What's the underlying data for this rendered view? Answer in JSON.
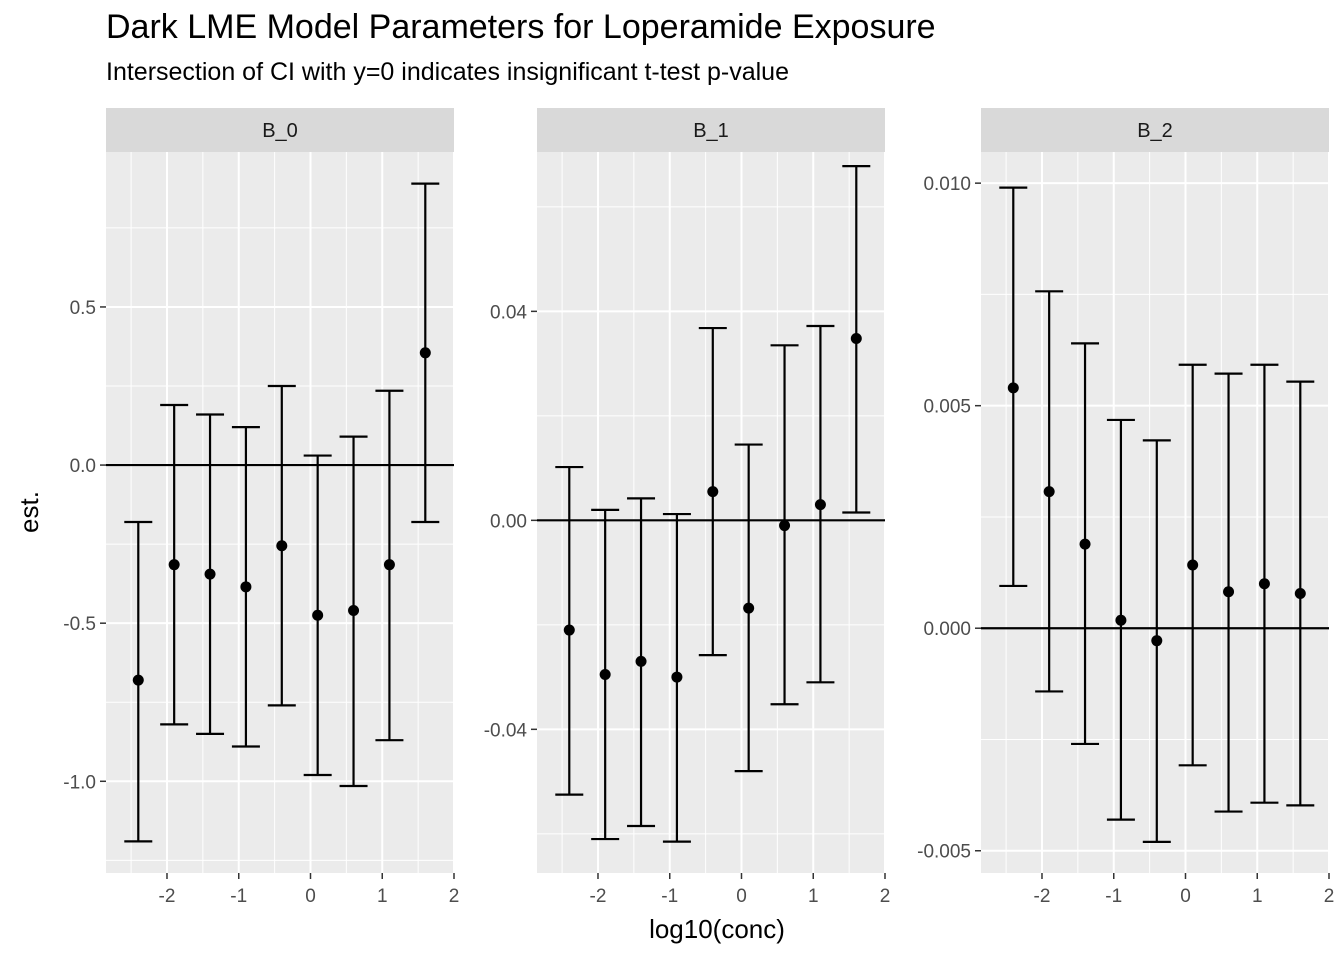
{
  "title": "Dark LME Model Parameters for Loperamide Exposure",
  "subtitle": "Intersection of CI with y=0 indicates insignificant t-test p-value",
  "chart_data": {
    "type": "errorbar",
    "xlabel": "log10(conc)",
    "ylabel": "est.",
    "hline": 0,
    "grid": true,
    "x_ticks": [
      -2,
      -1,
      0,
      1,
      2
    ],
    "x_tick_labels": [
      "-2",
      "-1",
      "0",
      "1",
      "2"
    ],
    "xlim": [
      -2.85,
      2.0
    ],
    "panels": [
      {
        "strip": "B_0",
        "ylim": [
          -1.29,
          0.99
        ],
        "y_ticks": [
          -1.0,
          -0.5,
          0.0,
          0.5
        ],
        "y_tick_labels": [
          "-1.0",
          "-0.5",
          "0.0",
          "0.5"
        ],
        "points": [
          {
            "x": -2.4,
            "est": -0.68,
            "lo": -1.19,
            "hi": -0.18
          },
          {
            "x": -1.9,
            "est": -0.315,
            "lo": -0.82,
            "hi": 0.19
          },
          {
            "x": -1.4,
            "est": -0.345,
            "lo": -0.85,
            "hi": 0.16
          },
          {
            "x": -0.9,
            "est": -0.385,
            "lo": -0.89,
            "hi": 0.12
          },
          {
            "x": -0.4,
            "est": -0.255,
            "lo": -0.76,
            "hi": 0.25
          },
          {
            "x": 0.1,
            "est": -0.475,
            "lo": -0.98,
            "hi": 0.03
          },
          {
            "x": 0.6,
            "est": -0.46,
            "lo": -1.015,
            "hi": 0.09
          },
          {
            "x": 1.1,
            "est": -0.315,
            "lo": -0.87,
            "hi": 0.235
          },
          {
            "x": 1.6,
            "est": 0.355,
            "lo": -0.18,
            "hi": 0.89
          }
        ]
      },
      {
        "strip": "B_1",
        "ylim": [
          -0.0675,
          0.0705
        ],
        "y_ticks": [
          -0.04,
          0.0,
          0.04
        ],
        "y_tick_labels": [
          "-0.04",
          "0.00",
          "0.04"
        ],
        "points": [
          {
            "x": -2.4,
            "est": -0.021,
            "lo": -0.0525,
            "hi": 0.0102
          },
          {
            "x": -1.9,
            "est": -0.0295,
            "lo": -0.061,
            "hi": 0.002
          },
          {
            "x": -1.4,
            "est": -0.027,
            "lo": -0.0585,
            "hi": 0.0042
          },
          {
            "x": -0.9,
            "est": -0.03,
            "lo": -0.0615,
            "hi": 0.0012
          },
          {
            "x": -0.4,
            "est": 0.0055,
            "lo": -0.0258,
            "hi": 0.0368
          },
          {
            "x": 0.1,
            "est": -0.0168,
            "lo": -0.048,
            "hi": 0.0145
          },
          {
            "x": 0.6,
            "est": -0.001,
            "lo": -0.0352,
            "hi": 0.0335
          },
          {
            "x": 1.1,
            "est": 0.003,
            "lo": -0.031,
            "hi": 0.0372
          },
          {
            "x": 1.6,
            "est": 0.0348,
            "lo": 0.0015,
            "hi": 0.0678
          }
        ]
      },
      {
        "strip": "B_2",
        "ylim": [
          -0.0055,
          0.0107
        ],
        "y_ticks": [
          -0.005,
          0.0,
          0.005,
          0.01
        ],
        "y_tick_labels": [
          "-0.005",
          "0.000",
          "0.005",
          "0.010"
        ],
        "points": [
          {
            "x": -2.4,
            "est": 0.0054,
            "lo": 0.00095,
            "hi": 0.0099
          },
          {
            "x": -1.9,
            "est": 0.00307,
            "lo": -0.00142,
            "hi": 0.00757
          },
          {
            "x": -1.4,
            "est": 0.00189,
            "lo": -0.0026,
            "hi": 0.0064
          },
          {
            "x": -0.9,
            "est": 0.00018,
            "lo": -0.0043,
            "hi": 0.00468
          },
          {
            "x": -0.4,
            "est": -0.00028,
            "lo": -0.0048,
            "hi": 0.00422
          },
          {
            "x": 0.1,
            "est": 0.00142,
            "lo": -0.00308,
            "hi": 0.00592
          },
          {
            "x": 0.6,
            "est": 0.00082,
            "lo": -0.00412,
            "hi": 0.00572
          },
          {
            "x": 1.1,
            "est": 0.001,
            "lo": -0.00392,
            "hi": 0.00592
          },
          {
            "x": 1.6,
            "est": 0.00078,
            "lo": -0.00398,
            "hi": 0.00554
          }
        ]
      }
    ]
  }
}
